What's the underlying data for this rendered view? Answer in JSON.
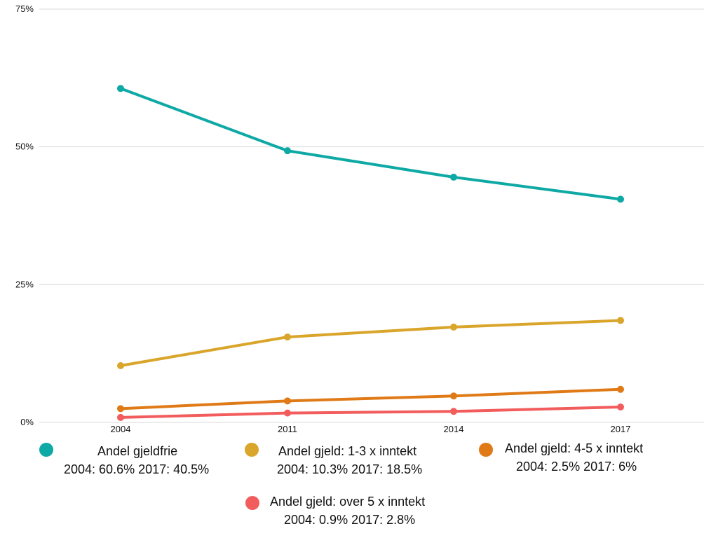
{
  "chart_data": {
    "type": "line",
    "x": [
      "2004",
      "2011",
      "2014",
      "2017"
    ],
    "ylim": [
      0,
      75
    ],
    "y_ticks": [
      "0%",
      "25%",
      "50%",
      "75%"
    ],
    "grid": true,
    "legend_position": "bottom",
    "series": [
      {
        "name": "Andel gjeldfrie",
        "summary": "2004: 60.6% 2017: 40.5%",
        "color": "#0fa9a5",
        "values": [
          60.6,
          49.3,
          44.5,
          40.5
        ]
      },
      {
        "name": "Andel gjeld: 1-3 x inntekt",
        "summary": "2004: 10.3% 2017: 18.5%",
        "color": "#d9a52a",
        "values": [
          10.3,
          15.5,
          17.3,
          18.5
        ]
      },
      {
        "name": "Andel gjeld: 4-5 x inntekt",
        "summary": "2004: 2.5% 2017: 6%",
        "color": "#df7a17",
        "values": [
          2.5,
          3.9,
          4.8,
          6.0
        ]
      },
      {
        "name": "Andel gjeld: over 5 x inntekt",
        "summary": "2004: 0.9% 2017: 2.8%",
        "color": "#f25c5c",
        "values": [
          0.9,
          1.7,
          2.0,
          2.8
        ]
      }
    ]
  }
}
